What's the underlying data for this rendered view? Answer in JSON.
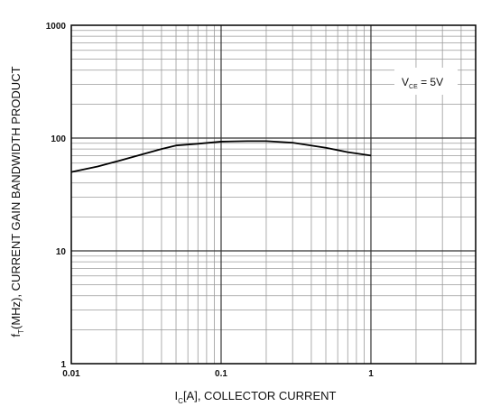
{
  "chart_data": {
    "type": "line",
    "x_scale": "log",
    "y_scale": "log",
    "xlim": [
      0.01,
      5
    ],
    "ylim": [
      1,
      1000
    ],
    "grid": true,
    "x_ticks": [
      {
        "value": 0.01,
        "label": "0.01"
      },
      {
        "value": 0.1,
        "label": "0.1"
      },
      {
        "value": 1,
        "label": "1"
      }
    ],
    "y_ticks": [
      {
        "value": 1,
        "label": "1"
      },
      {
        "value": 10,
        "label": "10"
      },
      {
        "value": 100,
        "label": "100"
      },
      {
        "value": 1000,
        "label": "1000"
      }
    ],
    "xlabel": {
      "prefix": "I",
      "sub": "C",
      "rest": "[A], COLLECTOR CURRENT"
    },
    "ylabel": {
      "prefix": "f",
      "sub": "T",
      "rest": "(MHz), CURRENT GAIN BANDWIDTH PRODUCT"
    },
    "annotation": {
      "prefix": "V",
      "sub": "CE",
      "rest": " = 5V",
      "position": "top-right"
    },
    "series": [
      {
        "color": "#000000",
        "points": [
          [
            0.01,
            50
          ],
          [
            0.015,
            56
          ],
          [
            0.02,
            62
          ],
          [
            0.03,
            72
          ],
          [
            0.04,
            80
          ],
          [
            0.05,
            86
          ],
          [
            0.07,
            89
          ],
          [
            0.1,
            93
          ],
          [
            0.15,
            94
          ],
          [
            0.2,
            94
          ],
          [
            0.3,
            91
          ],
          [
            0.5,
            82
          ],
          [
            0.7,
            75
          ],
          [
            1.0,
            70
          ]
        ]
      }
    ]
  }
}
